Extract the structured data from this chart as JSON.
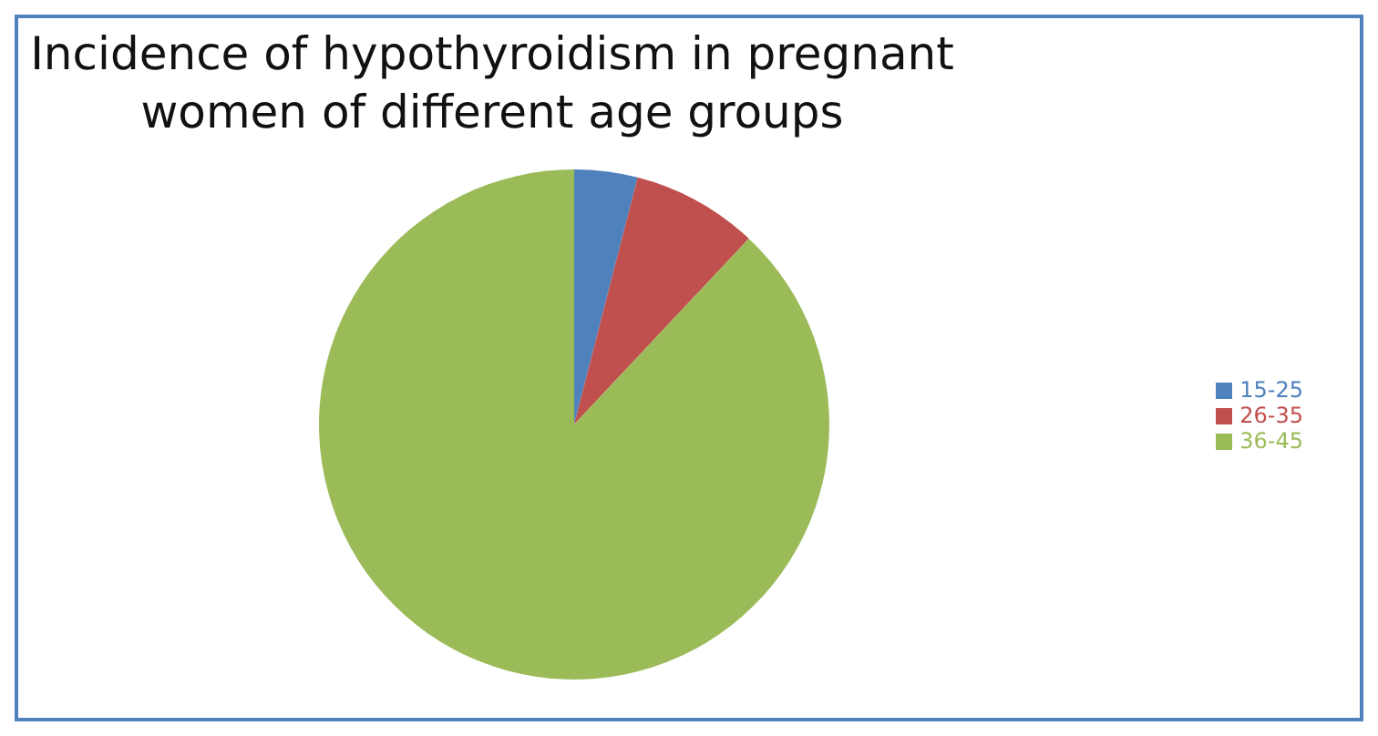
{
  "chart_data": {
    "type": "pie",
    "title": "Incidence of hypothyroidism in pregnant women of different age groups",
    "categories": [
      "15-25",
      "26-35",
      "36-45"
    ],
    "values": [
      4,
      8,
      88
    ],
    "colors": [
      "#4f81bd",
      "#c0504d",
      "#9bbb59"
    ],
    "legend": "right"
  }
}
